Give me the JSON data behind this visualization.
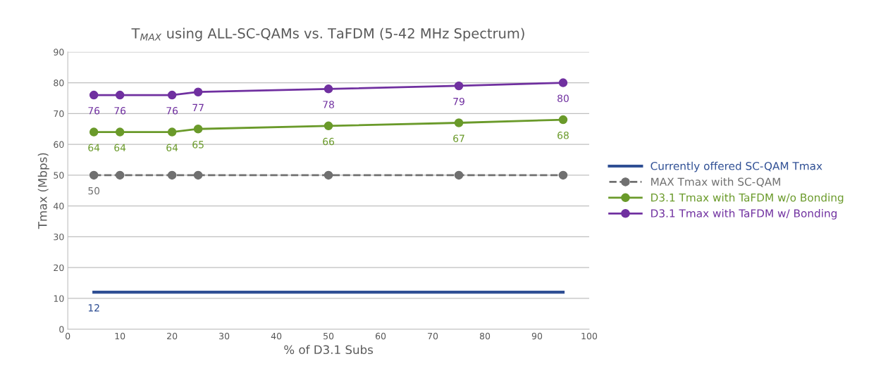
{
  "chart_data": {
    "type": "line",
    "title": "T$_{MAX}$ using ALL-SC-QAMs vs. TaFDM (5-42 MHz Spectrum)",
    "xlabel": "% of D3.1 Subs",
    "ylabel": "Tmax (Mbps)",
    "xlim": [
      0,
      100
    ],
    "xticks": [
      0,
      10,
      20,
      30,
      40,
      50,
      60,
      70,
      80,
      90,
      100
    ],
    "ylim": [
      0,
      90
    ],
    "yticks": [
      0,
      10,
      20,
      30,
      40,
      50,
      60,
      70,
      80,
      90
    ],
    "grid": "y",
    "legend": "right",
    "series": [
      {
        "name": "Currently offered SC-QAM Tmax",
        "color": "#2f4f94",
        "x": [
          5,
          95
        ],
        "values": [
          12,
          12
        ],
        "value_labels": [
          "12",
          null
        ],
        "marker": "none",
        "line_style": "solid"
      },
      {
        "name": "MAX Tmax with SC-QAM",
        "color": "#707070",
        "x": [
          5,
          10,
          20,
          25,
          50,
          75,
          95
        ],
        "values": [
          50,
          50,
          50,
          50,
          50,
          50,
          50
        ],
        "value_labels": [
          "50",
          null,
          null,
          null,
          null,
          null,
          null
        ],
        "marker": "circle",
        "line_style": "dashed"
      },
      {
        "name": "D3.1 Tmax with TaFDM w/o Bonding",
        "color": "#6a9a2a",
        "x": [
          5,
          10,
          20,
          25,
          50,
          75,
          95
        ],
        "values": [
          64,
          64,
          64,
          65,
          66,
          67,
          68
        ],
        "value_labels": [
          "64",
          "64",
          "64",
          "65",
          "66",
          "67",
          "68"
        ],
        "marker": "circle",
        "line_style": "solid"
      },
      {
        "name": "D3.1 Tmax with TaFDM w/ Bonding",
        "color": "#7030a0",
        "x": [
          5,
          10,
          20,
          25,
          50,
          75,
          95
        ],
        "values": [
          76,
          76,
          76,
          77,
          78,
          79,
          80
        ],
        "value_labels": [
          "76",
          "76",
          "76",
          "77",
          "78",
          "79",
          "80"
        ],
        "marker": "circle",
        "line_style": "solid"
      }
    ]
  }
}
